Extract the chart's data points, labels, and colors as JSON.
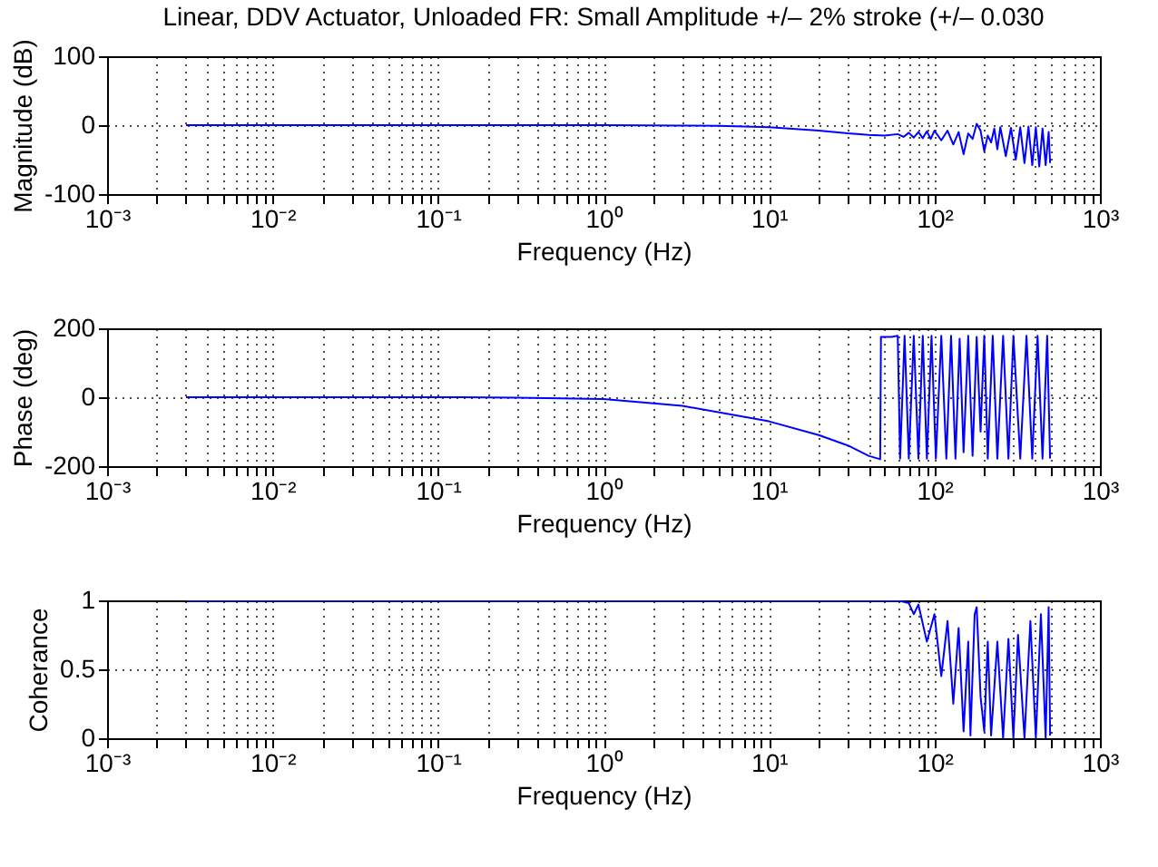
{
  "chart_data": [
    {
      "type": "line",
      "title": "Linear, DDV Actuator, Unloaded FR: Small Amplitude +/– 2% stroke (+/– 0.030",
      "xlabel": "Frequency (Hz)",
      "ylabel": "Magnitude (dB)",
      "log": "x",
      "grid": true,
      "line_style": "solid",
      "xlim": [
        0.001,
        1000
      ],
      "ylim": [
        -100,
        100
      ],
      "yticks": [
        -100,
        0,
        100
      ],
      "xticks": [
        {
          "value": 0.001,
          "label": "10⁻³"
        },
        {
          "value": 0.002,
          "label": null
        },
        {
          "value": 0.003,
          "label": null
        },
        {
          "value": 0.004,
          "label": null
        },
        {
          "value": 0.005,
          "label": null
        },
        {
          "value": 0.006,
          "label": null
        },
        {
          "value": 0.007,
          "label": null
        },
        {
          "value": 0.008,
          "label": null
        },
        {
          "value": 0.009,
          "label": null
        },
        {
          "value": 0.01,
          "label": "10⁻²"
        },
        {
          "value": 0.02,
          "label": null
        },
        {
          "value": 0.03,
          "label": null
        },
        {
          "value": 0.04,
          "label": null
        },
        {
          "value": 0.05,
          "label": null
        },
        {
          "value": 0.06,
          "label": null
        },
        {
          "value": 0.07,
          "label": null
        },
        {
          "value": 0.08,
          "label": null
        },
        {
          "value": 0.09,
          "label": null
        },
        {
          "value": 0.1,
          "label": "10⁻¹"
        },
        {
          "value": 0.2,
          "label": null
        },
        {
          "value": 0.3,
          "label": null
        },
        {
          "value": 0.4,
          "label": null
        },
        {
          "value": 0.5,
          "label": null
        },
        {
          "value": 0.6,
          "label": null
        },
        {
          "value": 0.7,
          "label": null
        },
        {
          "value": 0.8,
          "label": null
        },
        {
          "value": 0.9,
          "label": null
        },
        {
          "value": 1,
          "label": "10⁰"
        },
        {
          "value": 2,
          "label": null
        },
        {
          "value": 3,
          "label": null
        },
        {
          "value": 4,
          "label": null
        },
        {
          "value": 5,
          "label": null
        },
        {
          "value": 6,
          "label": null
        },
        {
          "value": 7,
          "label": null
        },
        {
          "value": 8,
          "label": null
        },
        {
          "value": 9,
          "label": null
        },
        {
          "value": 10,
          "label": "10¹"
        },
        {
          "value": 20,
          "label": null
        },
        {
          "value": 30,
          "label": null
        },
        {
          "value": 40,
          "label": null
        },
        {
          "value": 50,
          "label": null
        },
        {
          "value": 60,
          "label": null
        },
        {
          "value": 70,
          "label": null
        },
        {
          "value": 80,
          "label": null
        },
        {
          "value": 90,
          "label": null
        },
        {
          "value": 100,
          "label": "10²"
        },
        {
          "value": 200,
          "label": null
        },
        {
          "value": 300,
          "label": null
        },
        {
          "value": 400,
          "label": null
        },
        {
          "value": 500,
          "label": null
        },
        {
          "value": 600,
          "label": null
        },
        {
          "value": 700,
          "label": null
        },
        {
          "value": 800,
          "label": null
        },
        {
          "value": 900,
          "label": null
        },
        {
          "value": 1000,
          "label": "10³"
        }
      ],
      "series": [
        {
          "color": "#0000ff",
          "x": [
            0.003,
            0.01,
            0.1,
            1,
            3,
            5,
            10,
            20,
            30,
            40,
            50,
            60,
            65,
            70,
            75,
            80,
            85,
            90,
            95,
            100,
            110,
            120,
            130,
            140,
            150,
            160,
            170,
            180,
            190,
            200,
            210,
            220,
            230,
            240,
            250,
            270,
            290,
            310,
            330,
            350,
            370,
            390,
            410,
            430,
            450,
            470,
            490,
            500
          ],
          "values": [
            0,
            0,
            0,
            0,
            -0.5,
            -1,
            -3,
            -8,
            -12,
            -14,
            -15,
            -13,
            -17,
            -11,
            -18,
            -10,
            -19,
            -9,
            -20,
            -8,
            -22,
            -8,
            -28,
            -10,
            -42,
            -12,
            -20,
            2,
            -8,
            -38,
            -15,
            -25,
            -5,
            -35,
            -3,
            -45,
            -4,
            -50,
            -3,
            -55,
            -2,
            -58,
            -3,
            -60,
            -5,
            -58,
            -10,
            -55
          ]
        }
      ]
    },
    {
      "type": "line",
      "xlabel": "Frequency (Hz)",
      "ylabel": "Phase (deg)",
      "log": "x",
      "grid": true,
      "line_style": "solid",
      "xlim": [
        0.001,
        1000
      ],
      "ylim": [
        -200,
        200
      ],
      "yticks": [
        -200,
        0,
        200
      ],
      "xticks": [
        {
          "value": 0.001,
          "label": "10⁻³"
        },
        {
          "value": 0.002,
          "label": null
        },
        {
          "value": 0.003,
          "label": null
        },
        {
          "value": 0.004,
          "label": null
        },
        {
          "value": 0.005,
          "label": null
        },
        {
          "value": 0.006,
          "label": null
        },
        {
          "value": 0.007,
          "label": null
        },
        {
          "value": 0.008,
          "label": null
        },
        {
          "value": 0.009,
          "label": null
        },
        {
          "value": 0.01,
          "label": "10⁻²"
        },
        {
          "value": 0.02,
          "label": null
        },
        {
          "value": 0.03,
          "label": null
        },
        {
          "value": 0.04,
          "label": null
        },
        {
          "value": 0.05,
          "label": null
        },
        {
          "value": 0.06,
          "label": null
        },
        {
          "value": 0.07,
          "label": null
        },
        {
          "value": 0.08,
          "label": null
        },
        {
          "value": 0.09,
          "label": null
        },
        {
          "value": 0.1,
          "label": "10⁻¹"
        },
        {
          "value": 0.2,
          "label": null
        },
        {
          "value": 0.3,
          "label": null
        },
        {
          "value": 0.4,
          "label": null
        },
        {
          "value": 0.5,
          "label": null
        },
        {
          "value": 0.6,
          "label": null
        },
        {
          "value": 0.7,
          "label": null
        },
        {
          "value": 0.8,
          "label": null
        },
        {
          "value": 0.9,
          "label": null
        },
        {
          "value": 1,
          "label": "10⁰"
        },
        {
          "value": 2,
          "label": null
        },
        {
          "value": 3,
          "label": null
        },
        {
          "value": 4,
          "label": null
        },
        {
          "value": 5,
          "label": null
        },
        {
          "value": 6,
          "label": null
        },
        {
          "value": 7,
          "label": null
        },
        {
          "value": 8,
          "label": null
        },
        {
          "value": 9,
          "label": null
        },
        {
          "value": 10,
          "label": "10¹"
        },
        {
          "value": 20,
          "label": null
        },
        {
          "value": 30,
          "label": null
        },
        {
          "value": 40,
          "label": null
        },
        {
          "value": 50,
          "label": null
        },
        {
          "value": 60,
          "label": null
        },
        {
          "value": 70,
          "label": null
        },
        {
          "value": 80,
          "label": null
        },
        {
          "value": 90,
          "label": null
        },
        {
          "value": 100,
          "label": "10²"
        },
        {
          "value": 200,
          "label": null
        },
        {
          "value": 300,
          "label": null
        },
        {
          "value": 400,
          "label": null
        },
        {
          "value": 500,
          "label": null
        },
        {
          "value": 600,
          "label": null
        },
        {
          "value": 700,
          "label": null
        },
        {
          "value": 800,
          "label": null
        },
        {
          "value": 900,
          "label": null
        },
        {
          "value": 1000,
          "label": "10³"
        }
      ],
      "series": [
        {
          "color": "#0000ff",
          "x": [
            0.003,
            0.1,
            0.3,
            1,
            3,
            10,
            20,
            30,
            40,
            47,
            47.5,
            55,
            60,
            62,
            66,
            70,
            75,
            80,
            85,
            90,
            96,
            102,
            110,
            118,
            126,
            134,
            142,
            150,
            160,
            170,
            180,
            190,
            200,
            210,
            225,
            240,
            260,
            280,
            300,
            330,
            360,
            390,
            420,
            450,
            480,
            500
          ],
          "values": [
            0,
            0,
            -1,
            -5,
            -25,
            -70,
            -110,
            -140,
            -170,
            -180,
            175,
            175,
            178,
            -178,
            178,
            -178,
            178,
            -178,
            178,
            -178,
            178,
            -178,
            178,
            -178,
            178,
            -178,
            170,
            -160,
            178,
            -170,
            175,
            -100,
            178,
            -178,
            178,
            -178,
            178,
            -178,
            178,
            -178,
            178,
            -178,
            178,
            -178,
            178,
            -178
          ]
        }
      ]
    },
    {
      "type": "line",
      "xlabel": "Frequency (Hz)",
      "ylabel": "Coherance",
      "log": "x",
      "grid": true,
      "line_style": "solid",
      "xlim": [
        0.001,
        1000
      ],
      "ylim": [
        0,
        1
      ],
      "yticks": [
        0,
        0.5,
        1
      ],
      "xticks": [
        {
          "value": 0.001,
          "label": "10⁻³"
        },
        {
          "value": 0.002,
          "label": null
        },
        {
          "value": 0.003,
          "label": null
        },
        {
          "value": 0.004,
          "label": null
        },
        {
          "value": 0.005,
          "label": null
        },
        {
          "value": 0.006,
          "label": null
        },
        {
          "value": 0.007,
          "label": null
        },
        {
          "value": 0.008,
          "label": null
        },
        {
          "value": 0.009,
          "label": null
        },
        {
          "value": 0.01,
          "label": "10⁻²"
        },
        {
          "value": 0.02,
          "label": null
        },
        {
          "value": 0.03,
          "label": null
        },
        {
          "value": 0.04,
          "label": null
        },
        {
          "value": 0.05,
          "label": null
        },
        {
          "value": 0.06,
          "label": null
        },
        {
          "value": 0.07,
          "label": null
        },
        {
          "value": 0.08,
          "label": null
        },
        {
          "value": 0.09,
          "label": null
        },
        {
          "value": 0.1,
          "label": "10⁻¹"
        },
        {
          "value": 0.2,
          "label": null
        },
        {
          "value": 0.3,
          "label": null
        },
        {
          "value": 0.4,
          "label": null
        },
        {
          "value": 0.5,
          "label": null
        },
        {
          "value": 0.6,
          "label": null
        },
        {
          "value": 0.7,
          "label": null
        },
        {
          "value": 0.8,
          "label": null
        },
        {
          "value": 0.9,
          "label": null
        },
        {
          "value": 1,
          "label": "10⁰"
        },
        {
          "value": 2,
          "label": null
        },
        {
          "value": 3,
          "label": null
        },
        {
          "value": 4,
          "label": null
        },
        {
          "value": 5,
          "label": null
        },
        {
          "value": 6,
          "label": null
        },
        {
          "value": 7,
          "label": null
        },
        {
          "value": 8,
          "label": null
        },
        {
          "value": 9,
          "label": null
        },
        {
          "value": 10,
          "label": "10¹"
        },
        {
          "value": 20,
          "label": null
        },
        {
          "value": 30,
          "label": null
        },
        {
          "value": 40,
          "label": null
        },
        {
          "value": 50,
          "label": null
        },
        {
          "value": 60,
          "label": null
        },
        {
          "value": 70,
          "label": null
        },
        {
          "value": 80,
          "label": null
        },
        {
          "value": 90,
          "label": null
        },
        {
          "value": 100,
          "label": "10²"
        },
        {
          "value": 200,
          "label": null
        },
        {
          "value": 300,
          "label": null
        },
        {
          "value": 400,
          "label": null
        },
        {
          "value": 500,
          "label": null
        },
        {
          "value": 600,
          "label": null
        },
        {
          "value": 700,
          "label": null
        },
        {
          "value": 800,
          "label": null
        },
        {
          "value": 900,
          "label": null
        },
        {
          "value": 1000,
          "label": "10³"
        }
      ],
      "series": [
        {
          "color": "#0000ff",
          "x": [
            0.003,
            60,
            70,
            75,
            80,
            90,
            100,
            110,
            120,
            130,
            140,
            150,
            160,
            165,
            175,
            180,
            190,
            200,
            210,
            220,
            240,
            260,
            280,
            300,
            320,
            350,
            380,
            410,
            440,
            470,
            490,
            500
          ],
          "values": [
            1,
            1,
            0.98,
            0.9,
            0.97,
            0.7,
            0.9,
            0.45,
            0.85,
            0.25,
            0.8,
            0.05,
            0.7,
            0.02,
            0.9,
            0.95,
            0.3,
            0.05,
            0.7,
            0.02,
            0.7,
            0,
            0.72,
            0,
            0.75,
            0,
            0.85,
            0,
            0.9,
            0,
            0.95,
            0.02
          ]
        }
      ]
    }
  ]
}
